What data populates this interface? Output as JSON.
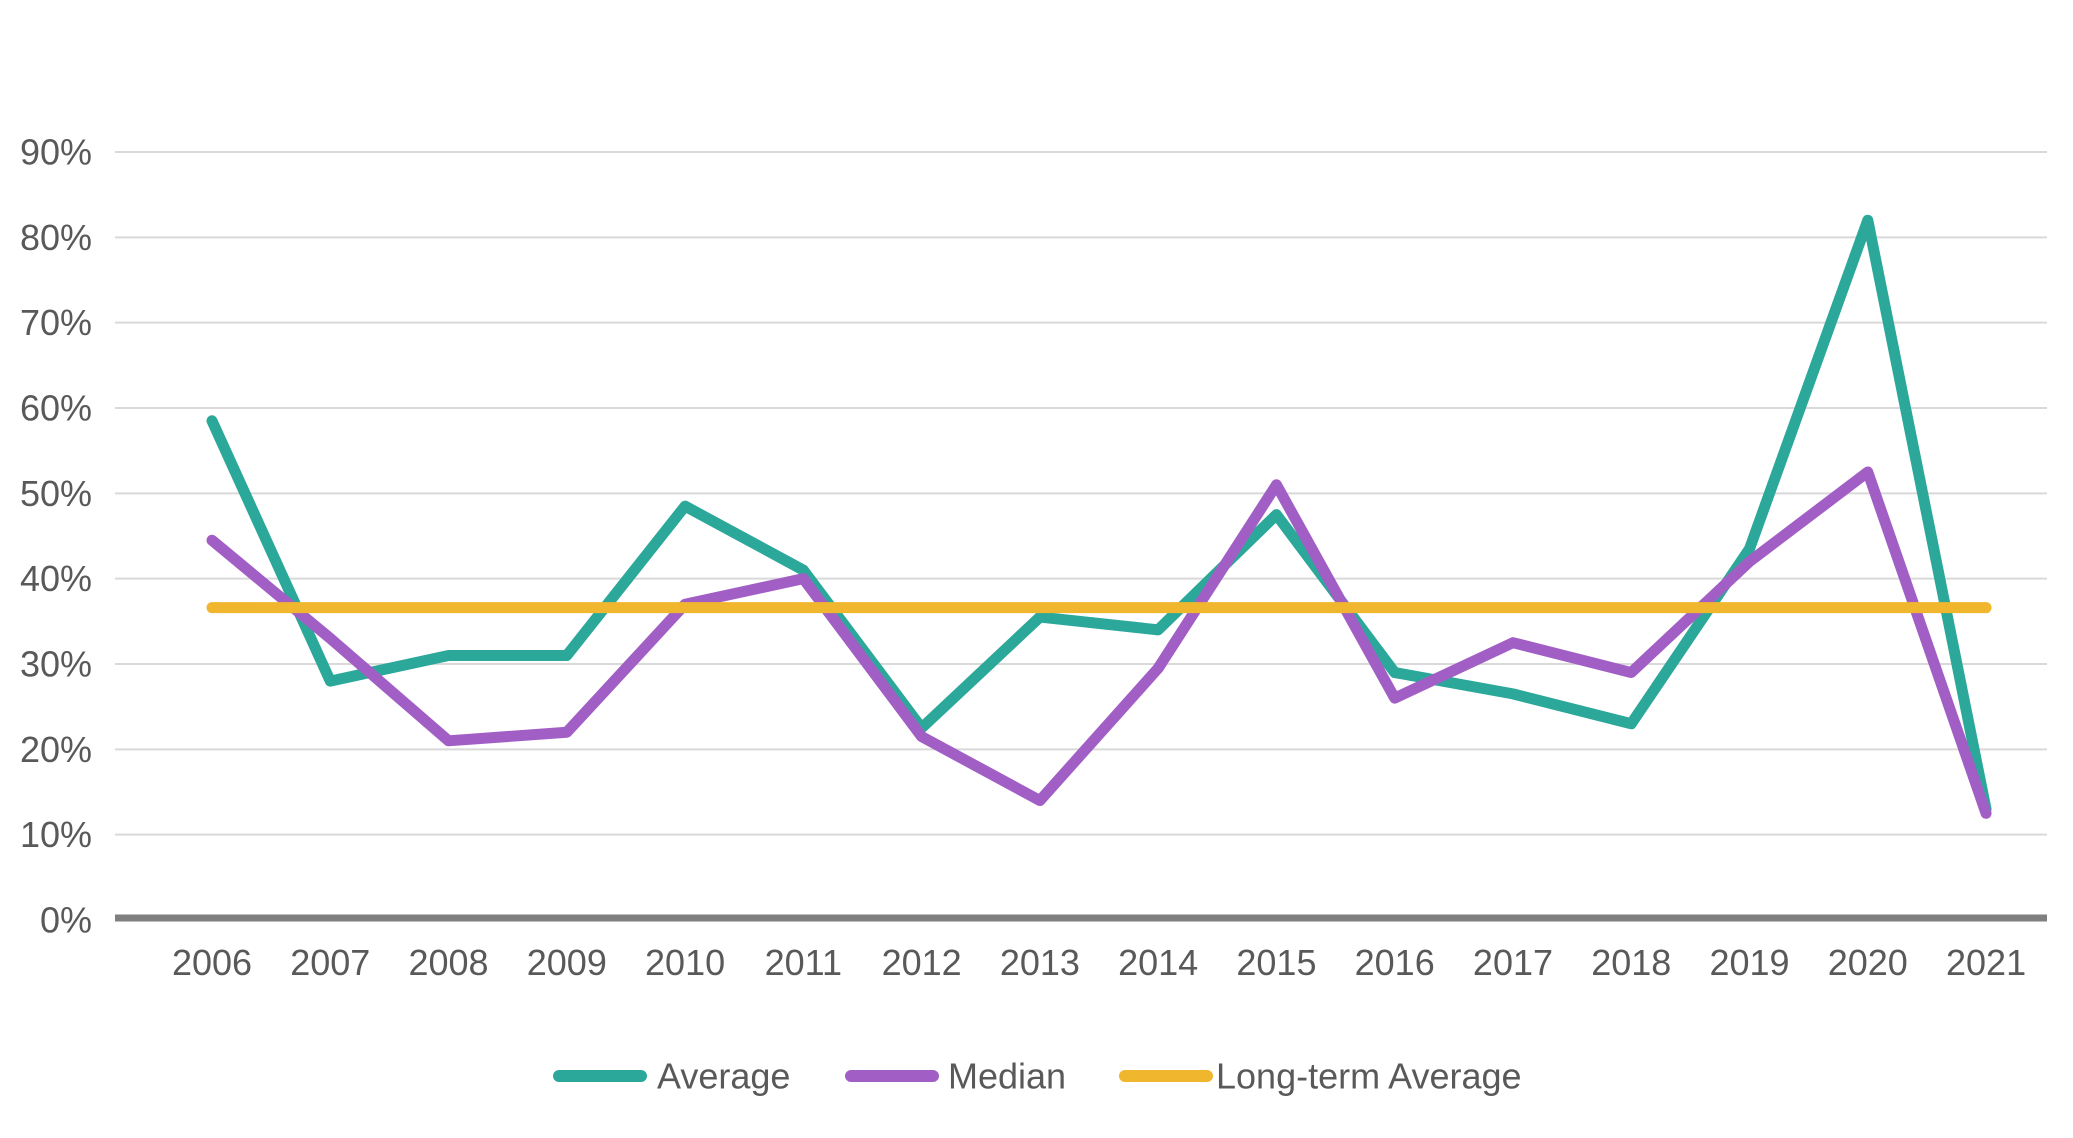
{
  "chart_data": {
    "type": "line",
    "title": "",
    "xlabel": "",
    "ylabel": "",
    "ylim": [
      0,
      90
    ],
    "grid": "horizontal",
    "legend_position": "bottom",
    "categories": [
      "2006",
      "2007",
      "2008",
      "2009",
      "2010",
      "2011",
      "2012",
      "2013",
      "2014",
      "2015",
      "2016",
      "2017",
      "2018",
      "2019",
      "2020",
      "2021"
    ],
    "series": [
      {
        "name": "Average",
        "color": "#2BA89A",
        "values": [
          58.5,
          28,
          31,
          31,
          48.5,
          41,
          22.5,
          35.5,
          34,
          47.5,
          29,
          26.5,
          23,
          43.5,
          82,
          13
        ]
      },
      {
        "name": "Median",
        "color": "#A15FC6",
        "values": [
          44.5,
          33,
          21,
          22,
          37,
          40,
          21.5,
          14,
          29.5,
          51,
          26,
          32.5,
          29,
          42,
          52.5,
          12.5
        ]
      },
      {
        "name": "Long-term Average",
        "color": "#F0B62D",
        "values": [
          36.6,
          36.6,
          36.6,
          36.6,
          36.6,
          36.6,
          36.6,
          36.6,
          36.6,
          36.6,
          36.6,
          36.6,
          36.6,
          36.6,
          36.6,
          36.6
        ]
      }
    ],
    "yticks": [
      {
        "value": 0,
        "label": "0%"
      },
      {
        "value": 10,
        "label": "10%"
      },
      {
        "value": 20,
        "label": "20%"
      },
      {
        "value": 30,
        "label": "30%"
      },
      {
        "value": 40,
        "label": "40%"
      },
      {
        "value": 50,
        "label": "50%"
      },
      {
        "value": 60,
        "label": "60%"
      },
      {
        "value": 70,
        "label": "70%"
      },
      {
        "value": 80,
        "label": "80%"
      },
      {
        "value": 90,
        "label": "90%"
      }
    ],
    "palette": {
      "text": "#595959",
      "gridline": "#D9D9D9",
      "axis_line": "#7F7F7F",
      "background": "#FFFFFF"
    }
  }
}
